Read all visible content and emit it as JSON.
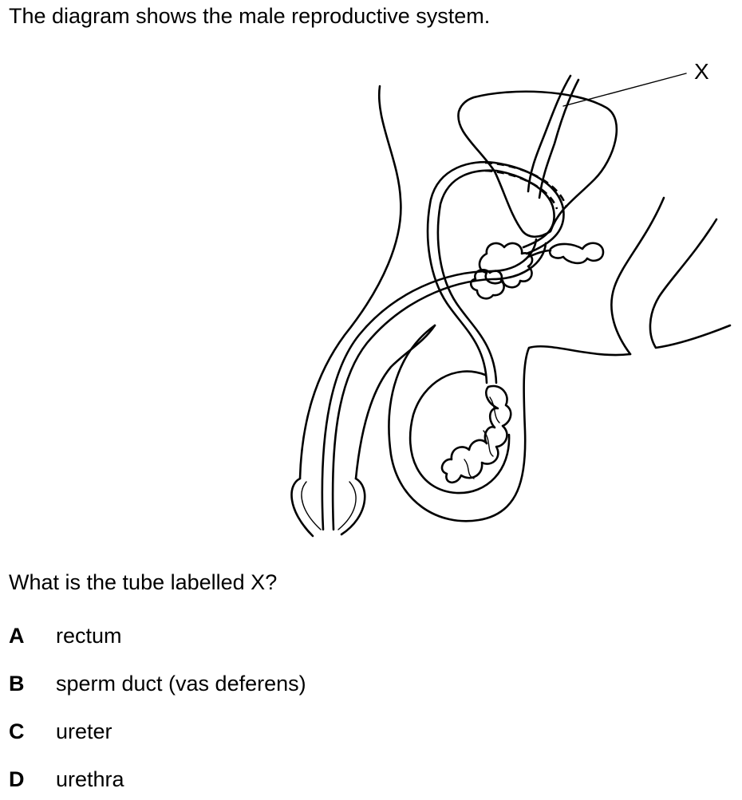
{
  "intro_text": "The diagram shows the male reproductive system.",
  "diagram": {
    "label_x": "X"
  },
  "question": "What is the tube labelled X?",
  "options": [
    {
      "letter": "A",
      "text": "rectum"
    },
    {
      "letter": "B",
      "text": "sperm duct (vas deferens)"
    },
    {
      "letter": "C",
      "text": "ureter"
    },
    {
      "letter": "D",
      "text": "urethra"
    }
  ]
}
